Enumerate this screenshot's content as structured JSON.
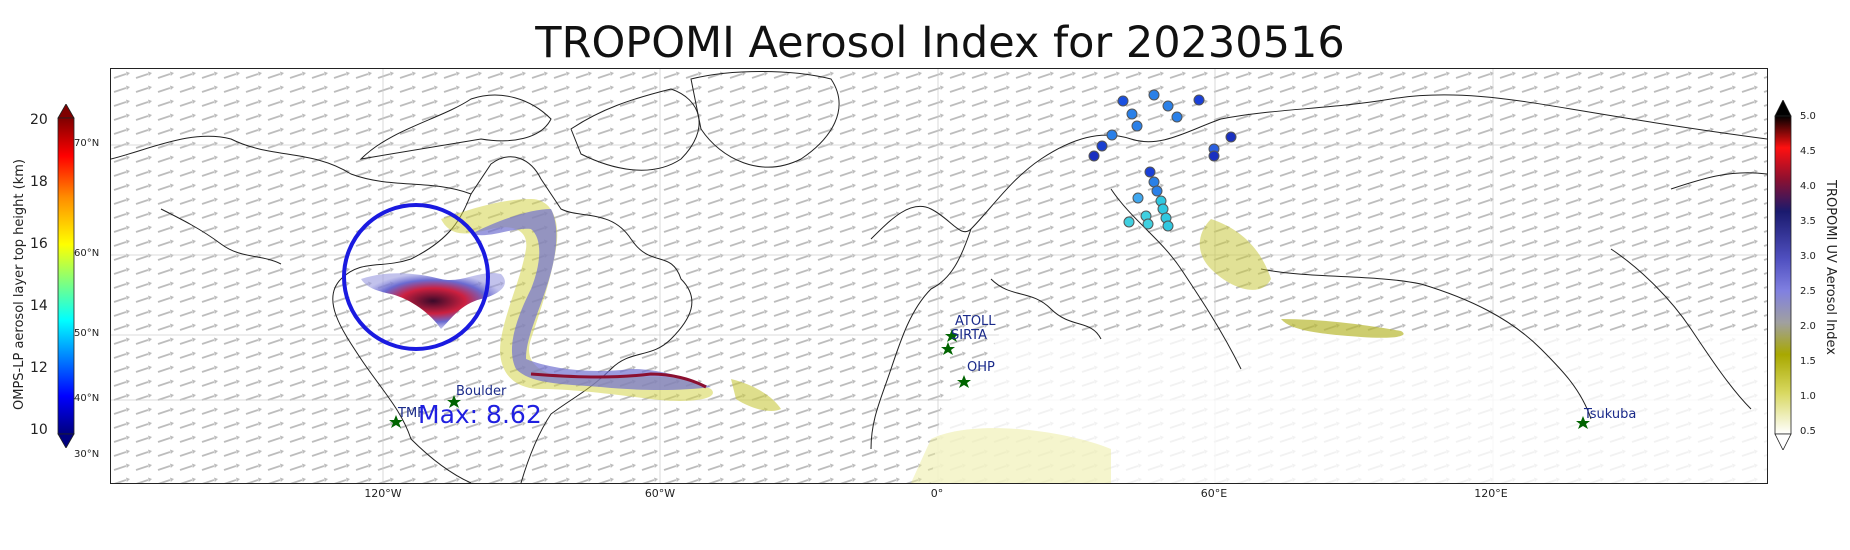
{
  "title": "TROPOMI Aerosol Index for 20230516",
  "lon_labels": [
    "120°W",
    "60°W",
    "0°",
    "60°E",
    "120°E"
  ],
  "lat_labels": [
    "70°N",
    "60°N",
    "50°N",
    "40°N",
    "30°N"
  ],
  "left_colorbar": {
    "label": "OMPS-LP aerosol layer top height (km)",
    "ticks": [
      "20",
      "18",
      "16",
      "14",
      "12",
      "10"
    ],
    "colors": [
      "#7f0000",
      "#ff0000",
      "#ff8c00",
      "#ffff00",
      "#7fff7f",
      "#00ffff",
      "#0080ff",
      "#0000ff",
      "#00007f"
    ]
  },
  "right_colorbar": {
    "label": "TROPOMI UV Aerosol Index",
    "ticks": [
      "5.0",
      "4.5",
      "4.0",
      "3.5",
      "3.0",
      "2.5",
      "2.0",
      "1.5",
      "1.0",
      "0.5"
    ],
    "colors": [
      "#000000",
      "#ff1010",
      "#8b1030",
      "#1a1a6e",
      "#5050c0",
      "#8080e0",
      "#a0a0a0",
      "#a8a800",
      "#d8d860",
      "#ffffff"
    ]
  },
  "max_label": "Max: 8.62",
  "sites": [
    {
      "name": "ATOLL"
    },
    {
      "name": "SIRTA"
    },
    {
      "name": "OHP"
    },
    {
      "name": "Boulder"
    },
    {
      "name": "TMF"
    },
    {
      "name": "Tsukuba"
    }
  ],
  "colors": {
    "circle": "#1a1ae0",
    "site_star": "#006400",
    "site_text": "#1a2a8a",
    "max_text": "#1f1fe0"
  }
}
